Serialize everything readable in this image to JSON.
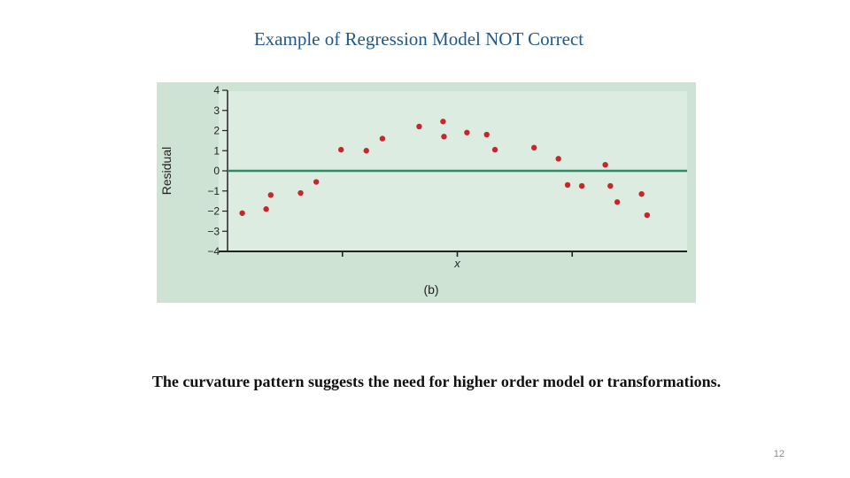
{
  "slide": {
    "title": "Example of Regression Model NOT Correct",
    "caption": "The curvature pattern suggests the need for higher order model or transformations.",
    "page_number": "12"
  },
  "colors": {
    "panel_background": "#cfe3d5",
    "plot_background": "#dcece0",
    "zero_line": "#2e8a62",
    "points": "#c8262c",
    "axis": "#222222",
    "title_text": "#1f5a8c"
  },
  "chart_data": {
    "type": "scatter",
    "title": "",
    "xlabel": "x",
    "ylabel": "Residual",
    "panel_label": "(b)",
    "ylim": [
      -4,
      4
    ],
    "xlim": [
      0,
      1
    ],
    "y_ticks": [
      "4",
      "3",
      "2",
      "1",
      "0",
      "−1",
      "−2",
      "−3",
      "−4"
    ],
    "x_tick_count": 3,
    "grid": false,
    "reference_line_y": 0,
    "points": [
      {
        "x": 0.032,
        "y": -2.1
      },
      {
        "x": 0.084,
        "y": -1.9
      },
      {
        "x": 0.094,
        "y": -1.2
      },
      {
        "x": 0.159,
        "y": -1.1
      },
      {
        "x": 0.193,
        "y": -0.55
      },
      {
        "x": 0.247,
        "y": 1.05
      },
      {
        "x": 0.302,
        "y": 1.0
      },
      {
        "x": 0.337,
        "y": 1.6
      },
      {
        "x": 0.417,
        "y": 2.2
      },
      {
        "x": 0.469,
        "y": 2.45
      },
      {
        "x": 0.471,
        "y": 1.7
      },
      {
        "x": 0.521,
        "y": 1.9
      },
      {
        "x": 0.564,
        "y": 1.8
      },
      {
        "x": 0.582,
        "y": 1.05
      },
      {
        "x": 0.667,
        "y": 1.15
      },
      {
        "x": 0.72,
        "y": 0.6
      },
      {
        "x": 0.74,
        "y": -0.7
      },
      {
        "x": 0.771,
        "y": -0.75
      },
      {
        "x": 0.822,
        "y": 0.3
      },
      {
        "x": 0.833,
        "y": -0.75
      },
      {
        "x": 0.848,
        "y": -1.55
      },
      {
        "x": 0.901,
        "y": -1.15
      },
      {
        "x": 0.913,
        "y": -2.2
      }
    ]
  }
}
